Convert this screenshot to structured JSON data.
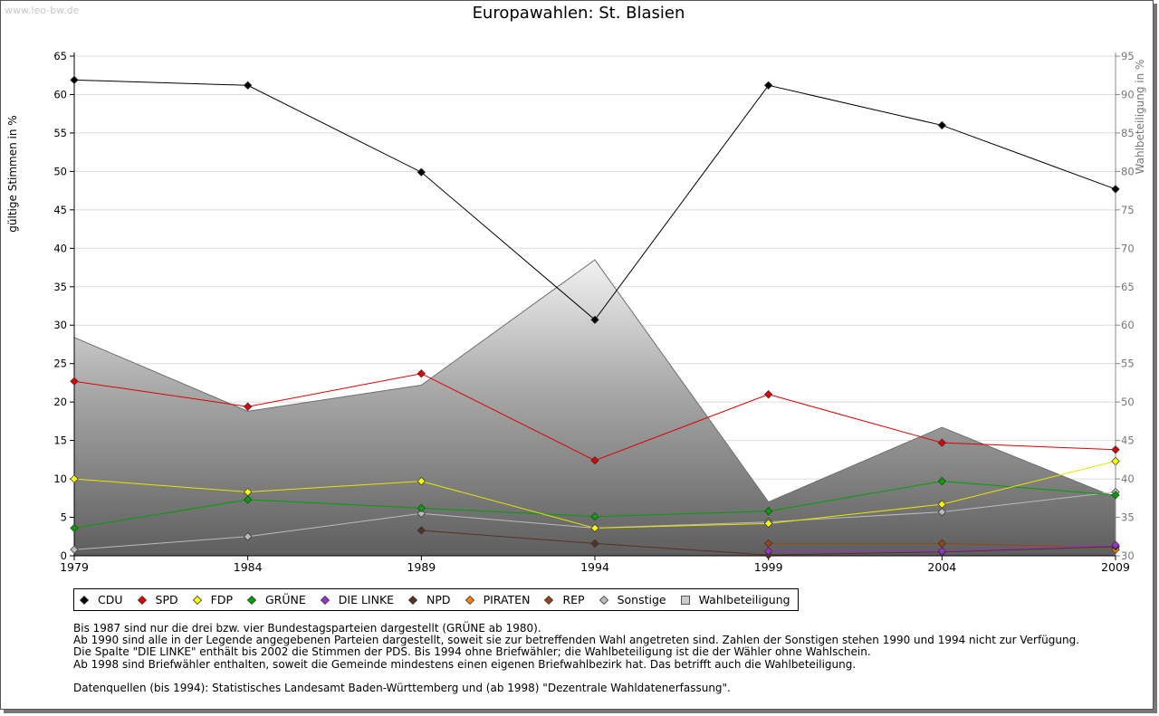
{
  "watermark": "www.leo-bw.de",
  "title": "Europawahlen: St. Blasien",
  "chart_data": {
    "type": "line",
    "title": "Europawahlen: St. Blasien",
    "ylabel": "gültige Stimmen in %",
    "y2label": "Wahlbeteiligung in %",
    "ylim": [
      0,
      65
    ],
    "y2lim": [
      30,
      95
    ],
    "yticks": [
      0,
      5,
      10,
      15,
      20,
      25,
      30,
      35,
      40,
      45,
      50,
      55,
      60,
      65
    ],
    "y2ticks": [
      30,
      35,
      40,
      45,
      50,
      55,
      60,
      65,
      70,
      75,
      80,
      85,
      90,
      95
    ],
    "categories": [
      "1979",
      "1984",
      "1989",
      "1994",
      "1999",
      "2004",
      "2009"
    ],
    "series": [
      {
        "name": "CDU",
        "color": "#000000",
        "values": [
          61.9,
          61.2,
          49.9,
          30.7,
          61.2,
          56.0,
          47.7
        ]
      },
      {
        "name": "SPD",
        "color": "#e00000",
        "values": [
          22.7,
          19.4,
          23.7,
          12.4,
          21.0,
          14.7,
          13.8
        ]
      },
      {
        "name": "FDP",
        "color": "#ffff00",
        "values": [
          10.0,
          8.3,
          9.7,
          3.6,
          4.2,
          6.7,
          12.3
        ]
      },
      {
        "name": "GRÜNE",
        "color": "#00a000",
        "values": [
          3.6,
          7.3,
          6.2,
          5.1,
          5.8,
          9.7,
          7.9
        ]
      },
      {
        "name": "DIE LINKE",
        "color": "#9933cc",
        "values": [
          null,
          null,
          null,
          null,
          0.6,
          0.6,
          1.4
        ]
      },
      {
        "name": "NPD",
        "color": "#553322",
        "values": [
          null,
          null,
          3.3,
          1.6,
          0.1,
          0.5,
          1.2
        ]
      },
      {
        "name": "PIRATEN",
        "color": "#ff8000",
        "values": [
          null,
          null,
          null,
          null,
          null,
          null,
          0.8
        ]
      },
      {
        "name": "REP",
        "color": "#994411",
        "values": [
          null,
          null,
          null,
          null,
          1.6,
          1.6,
          1.1
        ]
      },
      {
        "name": "Sonstige",
        "color": "#bbbbbb",
        "values": [
          0.8,
          2.5,
          5.5,
          3.6,
          4.4,
          5.7,
          8.3
        ]
      }
    ],
    "turnout": {
      "name": "Wahlbeteiligung",
      "axis": "right",
      "values": [
        58.4,
        48.8,
        52.2,
        68.5,
        37.0,
        46.7,
        37.6
      ]
    }
  },
  "legend": [
    {
      "label": "CDU",
      "color": "#000000",
      "shape": "diamond"
    },
    {
      "label": "SPD",
      "color": "#e00000",
      "shape": "diamond"
    },
    {
      "label": "FDP",
      "color": "#ffff00",
      "shape": "diamond"
    },
    {
      "label": "GRÜNE",
      "color": "#00a000",
      "shape": "diamond"
    },
    {
      "label": "DIE LINKE",
      "color": "#9933cc",
      "shape": "diamond"
    },
    {
      "label": "NPD",
      "color": "#553322",
      "shape": "diamond"
    },
    {
      "label": "PIRATEN",
      "color": "#ff8000",
      "shape": "diamond"
    },
    {
      "label": "REP",
      "color": "#994411",
      "shape": "diamond"
    },
    {
      "label": "Sonstige",
      "color": "#bbbbbb",
      "shape": "diamond"
    },
    {
      "label": "Wahlbeteiligung",
      "color": "#cccccc",
      "shape": "square"
    }
  ],
  "notes": [
    "Bis 1987 sind nur die drei bzw. vier Bundestagsparteien dargestellt (GRÜNE ab 1980).",
    "Ab 1990 sind alle in der Legende angegebenen Parteien dargestellt, soweit sie zur betreffenden Wahl angetreten sind. Zahlen der Sonstigen stehen 1990 und 1994 nicht zur Verfügung.",
    "Die Spalte \"DIE LINKE\" enthält bis 2002 die Stimmen der PDS. Bis 1994 ohne Briefwähler; die Wahlbeteiligung ist die der Wähler ohne Wahlschein.",
    "Ab 1998 sind Briefwähler enthalten, soweit die Gemeinde mindestens einen eigenen Briefwahlbezirk hat. Das betrifft auch die Wahlbeteiligung.",
    "",
    "Datenquellen (bis 1994): Statistisches Landesamt Baden-Württemberg und (ab 1998) \"Dezentrale Wahldatenerfassung\"."
  ]
}
